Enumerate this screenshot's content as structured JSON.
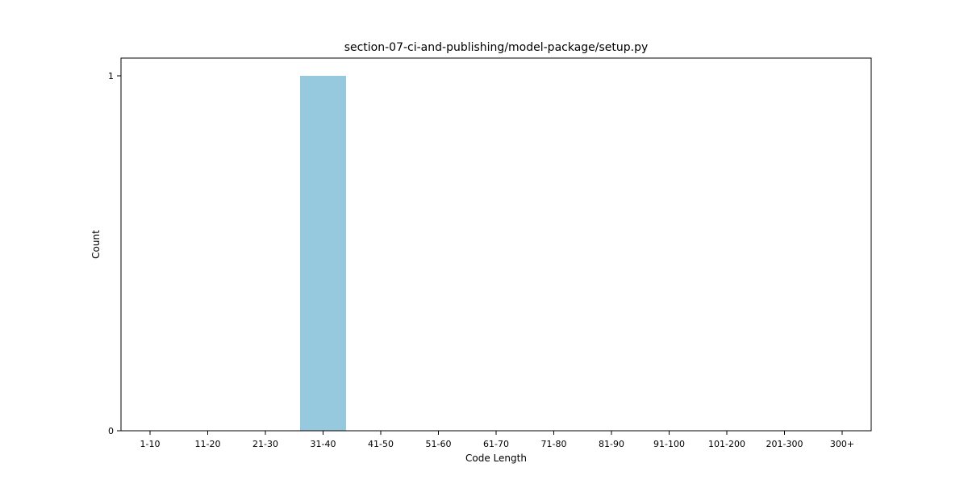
{
  "chart_data": {
    "type": "bar",
    "title": "section-07-ci-and-publishing/model-package/setup.py",
    "xlabel": "Code Length",
    "ylabel": "Count",
    "categories": [
      "1-10",
      "11-20",
      "21-30",
      "31-40",
      "41-50",
      "51-60",
      "61-70",
      "71-80",
      "81-90",
      "91-100",
      "101-200",
      "201-300",
      "300+"
    ],
    "values": [
      0,
      0,
      0,
      1,
      0,
      0,
      0,
      0,
      0,
      0,
      0,
      0,
      0
    ],
    "ylim": [
      0,
      1.05
    ],
    "yticks": [
      0,
      1
    ],
    "grid": false,
    "bar_color": "#96c9de"
  }
}
